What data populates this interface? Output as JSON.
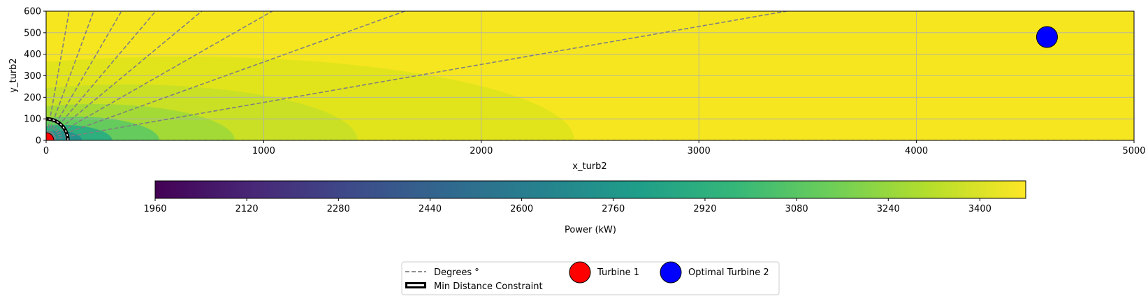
{
  "chart_data": {
    "type": "heatmap",
    "title": "",
    "xlabel": "x_turb2",
    "ylabel": "y_turb2",
    "xlim": [
      0,
      5000
    ],
    "ylim": [
      0,
      600
    ],
    "x_ticks": [
      0,
      1000,
      2000,
      3000,
      4000,
      5000
    ],
    "y_ticks": [
      0,
      100,
      200,
      300,
      400,
      500,
      600
    ],
    "grid": true,
    "colorbar": {
      "label": "Power (kW)",
      "colormap": "viridis",
      "range": [
        1960,
        3480
      ],
      "ticks": [
        1960,
        2120,
        2280,
        2440,
        2600,
        2760,
        2920,
        3080,
        3240,
        3400
      ],
      "orientation": "horizontal"
    },
    "turbine_1": {
      "label": "Turbine 1",
      "x": 0,
      "y": 0,
      "color": "#ff0000"
    },
    "optimal_turbine_2": {
      "label": "Optimal Turbine 2",
      "x": 4600,
      "y": 480,
      "color": "#0000ff"
    },
    "min_distance_constraint": {
      "label": "Min Distance Constraint",
      "radius": 100
    },
    "degree_lines": {
      "label": "Degrees °",
      "angles_deg": [
        0,
        10,
        20,
        30,
        40,
        50,
        60,
        70,
        80
      ],
      "color": "#808080"
    },
    "legend_placement": "below"
  }
}
